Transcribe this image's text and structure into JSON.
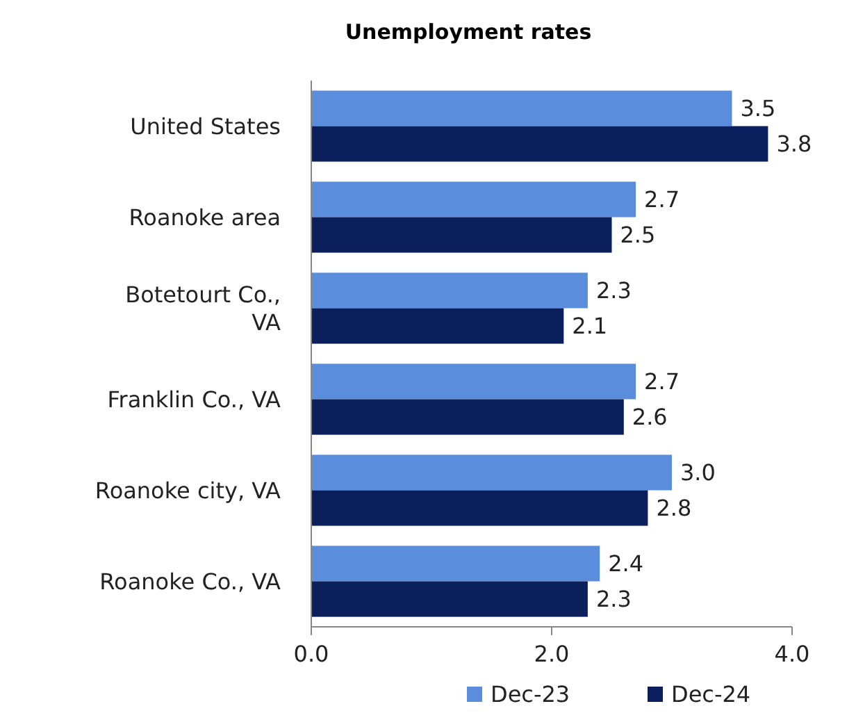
{
  "chart_data": {
    "type": "bar",
    "orientation": "horizontal",
    "title": "Unemployment rates",
    "categories": [
      "United States",
      "Roanoke area",
      "Botetourt Co., VA",
      "Franklin Co., VA",
      "Roanoke city, VA",
      "Roanoke Co., VA"
    ],
    "series": [
      {
        "name": "Dec-23",
        "color": "#5b8ddd",
        "values": [
          3.5,
          2.7,
          2.3,
          2.7,
          3.0,
          2.4
        ],
        "value_labels": [
          "3.5",
          "2.7",
          "2.3",
          "2.7",
          "3.0",
          "2.4"
        ]
      },
      {
        "name": "Dec-24",
        "color": "#0a1f5c",
        "values": [
          3.8,
          2.5,
          2.1,
          2.6,
          2.8,
          2.3
        ],
        "value_labels": [
          "3.8",
          "2.5",
          "2.1",
          "2.6",
          "2.8",
          "2.3"
        ]
      }
    ],
    "xlim": [
      0,
      4
    ],
    "xticks": [
      {
        "value": 0,
        "label": "0.0"
      },
      {
        "value": 2,
        "label": "2.0"
      },
      {
        "value": 4,
        "label": "4.0"
      }
    ],
    "grid": false,
    "legend": "bottom"
  }
}
